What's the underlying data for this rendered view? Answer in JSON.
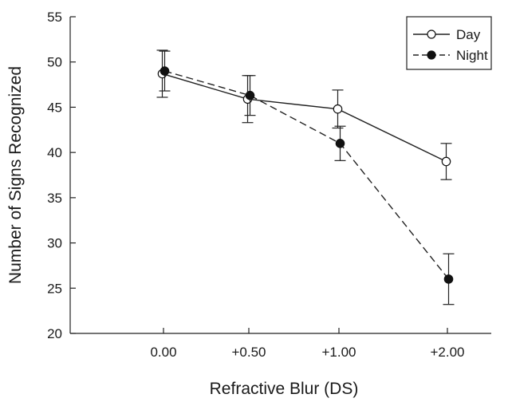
{
  "chart_data": {
    "type": "line",
    "title": "",
    "xlabel": "Refractive Blur (DS)",
    "ylabel": "Number of Signs Recognized",
    "categories": [
      "0.00",
      "+0.50",
      "+1.00",
      "+2.00"
    ],
    "ylim": [
      20,
      55
    ],
    "yticks": [
      "20",
      "25",
      "30",
      "35",
      "40",
      "45",
      "50",
      "55"
    ],
    "grid": false,
    "legend_position": "top-right",
    "series": [
      {
        "name": "Day",
        "values": [
          48.7,
          45.9,
          44.8,
          39.0
        ],
        "error": [
          2.6,
          2.6,
          2.1,
          2.0
        ],
        "marker": "open-circle",
        "line": "solid",
        "color": "#222222"
      },
      {
        "name": "Night",
        "values": [
          49.0,
          46.3,
          41.0,
          26.0
        ],
        "error": [
          2.2,
          2.2,
          1.9,
          2.8
        ],
        "marker": "filled-circle",
        "line": "dashed",
        "color": "#222222"
      }
    ]
  }
}
